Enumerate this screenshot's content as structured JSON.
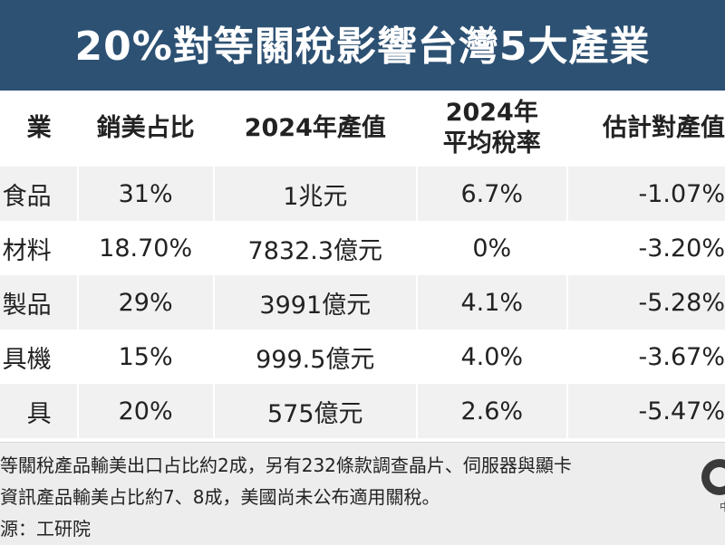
{
  "title": "20%對等關稅影響台灣5大產業",
  "table": {
    "headers": {
      "industry": "業",
      "export_share": "銷美占比",
      "output_2024": "2024年產值",
      "tariff_line1": "2024年",
      "tariff_line2": "平均稅率",
      "impact": "估計對產值"
    },
    "rows": [
      {
        "industry": "食品",
        "export_share": "31%",
        "output_2024": "1兆元",
        "tariff": "6.7%",
        "impact": "-1.07%"
      },
      {
        "industry": "材料",
        "export_share": "18.70%",
        "output_2024": "7832.3億元",
        "tariff": "0%",
        "impact": "-3.20%"
      },
      {
        "industry": "製品",
        "export_share": "29%",
        "output_2024": "3991億元",
        "tariff": "4.1%",
        "impact": "-5.28%"
      },
      {
        "industry": "具機",
        "export_share": "15%",
        "output_2024": "999.5億元",
        "tariff": "4.0%",
        "impact": "-3.67%"
      },
      {
        "industry": "具",
        "export_share": "20%",
        "output_2024": "575億元",
        "tariff": "2.6%",
        "impact": "-5.47%"
      }
    ]
  },
  "footer": {
    "line1": "等關稅產品輸美出口占比約2成，另有232條款調查晶片、伺服器與顯卡",
    "line2": "資訊產品輸美占比約7、8成，美國尚未公布適用關稅。",
    "line3": "源：工研院",
    "logo_text": "中"
  },
  "colors": {
    "title_bg": "#2d5173",
    "stripe": "#f1f1f1",
    "footer_bg": "#ededed"
  }
}
